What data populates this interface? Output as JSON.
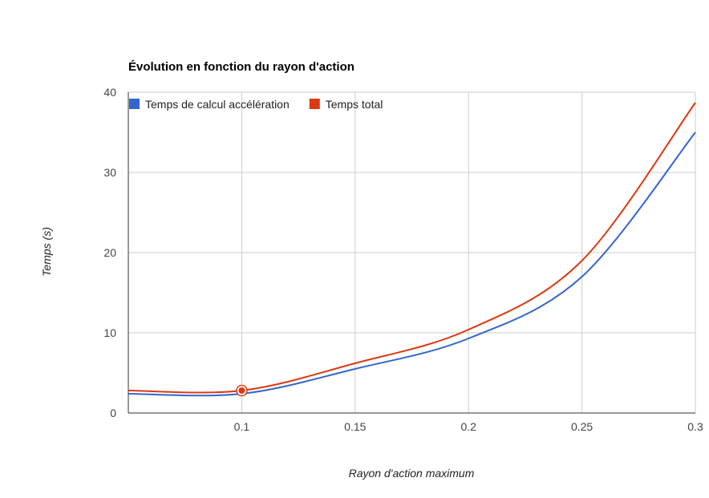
{
  "chart_data": {
    "type": "line",
    "title": "Évolution en fonction du rayon d'action",
    "xlabel": "Rayon d'action maximum",
    "ylabel": "Temps (s)",
    "xlim": [
      0.05,
      0.3
    ],
    "ylim": [
      0,
      40
    ],
    "xticks": [
      0.1,
      0.15,
      0.2,
      0.25,
      0.3
    ],
    "xtick_labels": [
      "0.1",
      "0.15",
      "0.2",
      "0.25",
      "0.3"
    ],
    "yticks": [
      0,
      10,
      20,
      30,
      40
    ],
    "ytick_labels": [
      "0",
      "10",
      "20",
      "30",
      "40"
    ],
    "grid": true,
    "legend_position": "top-left",
    "x": [
      0.05,
      0.1,
      0.15,
      0.2,
      0.25,
      0.3
    ],
    "series": [
      {
        "name": "Temps de calcul accélération",
        "color": "#3366cc",
        "values": [
          2.4,
          2.4,
          5.5,
          9.3,
          17.0,
          35.0
        ]
      },
      {
        "name": "Temps total",
        "color": "#dc3912",
        "values": [
          2.8,
          2.8,
          6.2,
          10.4,
          19.0,
          38.7
        ]
      }
    ],
    "highlighted_point": {
      "series": 1,
      "x": 0.1,
      "y": 2.8
    }
  }
}
